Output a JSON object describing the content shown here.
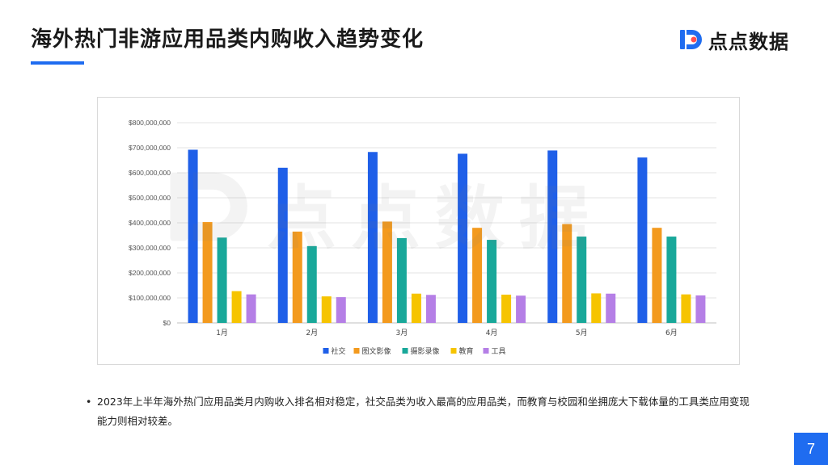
{
  "header": {
    "title": "海外热门非游应用品类内购收入趋势变化",
    "brand_name": "点点数据",
    "accent_color": "#1f6cf0"
  },
  "chart_data": {
    "type": "bar",
    "categories": [
      "1月",
      "2月",
      "3月",
      "4月",
      "5月",
      "6月"
    ],
    "series": [
      {
        "name": "社交",
        "color": "#1f5fe8",
        "values": [
          692000000,
          620000000,
          683000000,
          676000000,
          689000000,
          661000000
        ]
      },
      {
        "name": "图文影像",
        "color": "#f39a1e",
        "values": [
          403000000,
          365000000,
          405000000,
          380000000,
          395000000,
          380000000
        ]
      },
      {
        "name": "摄影录像",
        "color": "#19a89a",
        "values": [
          341000000,
          307000000,
          339000000,
          332000000,
          345000000,
          345000000
        ]
      },
      {
        "name": "教育",
        "color": "#f6c400",
        "values": [
          127000000,
          106000000,
          117000000,
          113000000,
          118000000,
          114000000
        ]
      },
      {
        "name": "工具",
        "color": "#b57fe6",
        "values": [
          114000000,
          103000000,
          112000000,
          109000000,
          117000000,
          110000000
        ]
      }
    ],
    "y_ticks": [
      "$0",
      "$100,000,000",
      "$200,000,000",
      "$300,000,000",
      "$400,000,000",
      "$500,000,000",
      "$600,000,000",
      "$700,000,000",
      "$800,000,000"
    ],
    "ylim": [
      0,
      800000000
    ],
    "title": "",
    "xlabel": "",
    "ylabel": "",
    "grid": true,
    "legend_position": "bottom"
  },
  "body": {
    "bullet": "•",
    "text": "2023年上半年海外热门应用品类月内购收入排名相对稳定，社交品类为收入最高的应用品类，而教育与校园和坐拥庞大下载体量的工具类应用变现能力则相对较差。"
  },
  "footer": {
    "page_number": "7"
  }
}
